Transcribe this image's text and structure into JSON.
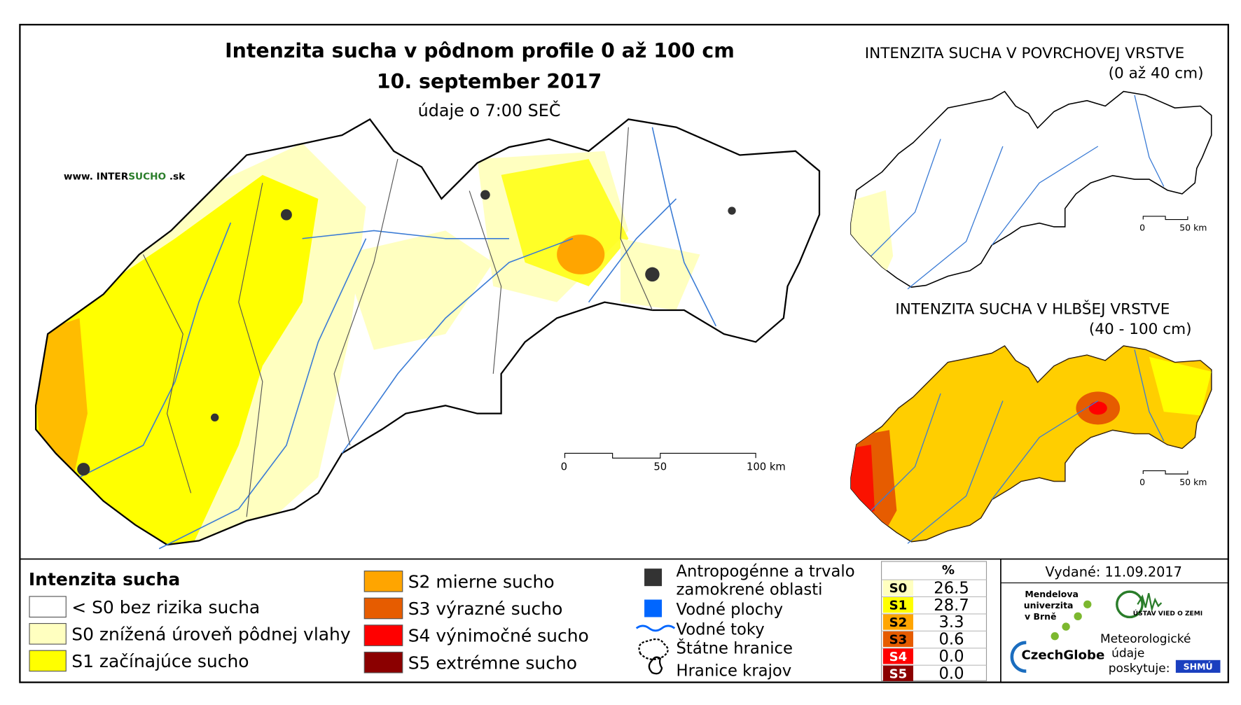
{
  "main_map": {
    "title": "Intenzita sucha v pôdnom profile 0 až 100 cm",
    "date": "10. september 2017",
    "subtitle": "údaje o 7:00 SEČ",
    "website": {
      "prefix": "www. INTER",
      "highlight": "SUCHO",
      "suffix": " .sk"
    },
    "scale_labels": [
      "0",
      "50",
      "100 km"
    ]
  },
  "inset_surface": {
    "title": "INTENZITA SUCHA V POVRCHOVEJ VRSTVE",
    "subtitle": "(0 až 40 cm)",
    "scale_labels": [
      "0",
      "50 km"
    ]
  },
  "inset_deep": {
    "title": "INTENZITA SUCHA V HLBŠEJ VRSTVE",
    "subtitle": "(40 - 100 cm)",
    "scale_labels": [
      "0",
      "50 km"
    ]
  },
  "legend": {
    "title": "Intenzita sucha",
    "classes": [
      {
        "label": "< S0 bez rizika sucha",
        "color": "#ffffff"
      },
      {
        "label": "S0 znížená úroveň pôdnej vlahy",
        "color": "#ffffc0"
      },
      {
        "label": "S1 začínajúce sucho",
        "color": "#ffff00"
      },
      {
        "label": "S2 mierne sucho",
        "color": "#ffa500"
      },
      {
        "label": "S3 výrazné sucho",
        "color": "#e65c00"
      },
      {
        "label": "S4 výnimočné sucho",
        "color": "#ff0000"
      },
      {
        "label": "S5 extrémne sucho",
        "color": "#8b0000"
      }
    ],
    "features": [
      {
        "lines": [
          "Antropogénne a trvalo",
          "zamokrené oblasti"
        ]
      },
      {
        "lines": [
          "Vodné plochy"
        ]
      },
      {
        "lines": [
          "Vodné toky"
        ]
      },
      {
        "lines": [
          "Štátne hranice"
        ]
      },
      {
        "lines": [
          "Hranice krajov"
        ]
      }
    ]
  },
  "stats": {
    "header": "%",
    "rows": [
      {
        "code": "S0",
        "value": "26.5",
        "color": "#ffffc0"
      },
      {
        "code": "S1",
        "value": "28.7",
        "color": "#ffff00"
      },
      {
        "code": "S2",
        "value": "3.3",
        "color": "#ffa500"
      },
      {
        "code": "S3",
        "value": "0.6",
        "color": "#e65c00"
      },
      {
        "code": "S4",
        "value": "0.0",
        "color": "#ff0000"
      },
      {
        "code": "S5",
        "value": "0.0",
        "color": "#8b0000"
      }
    ]
  },
  "footer": {
    "issued": "Vydané: 11.09.2017",
    "university": [
      "Mendelova",
      "univerzita",
      "v Brně"
    ],
    "czechglobe": "CzechGlobe",
    "institute": "ÚSTAV VIED O ZEMI",
    "provider": [
      "Meteorologické",
      "údaje",
      "poskytuje:"
    ],
    "shmu": "SHMÚ"
  }
}
